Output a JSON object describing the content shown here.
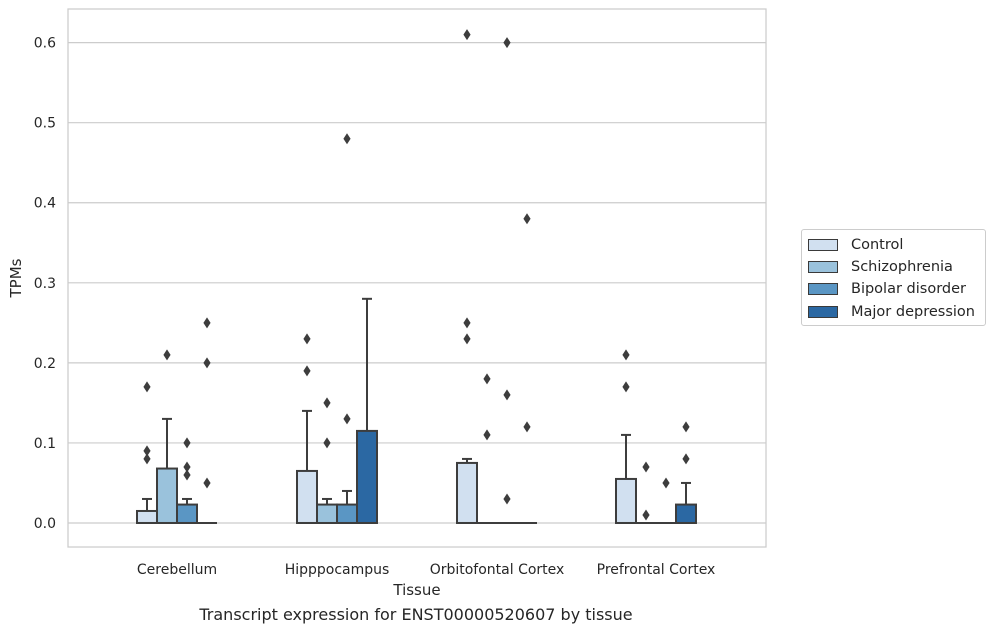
{
  "chart_data": {
    "type": "box",
    "xlabel": "Tissue",
    "ylabel": "TPMs",
    "ylim": [
      -0.03,
      0.642
    ],
    "yticks": [
      0.0,
      0.1,
      0.2,
      0.3,
      0.4,
      0.5,
      0.6
    ],
    "ytick_labels": [
      "0.0",
      "0.1",
      "0.2",
      "0.3",
      "0.4",
      "0.5",
      "0.6"
    ],
    "grid": "horizontal",
    "legend_position": "right",
    "caption": "Transcript expression for ENST00000520607 by tissue",
    "categories": [
      "Cerebellum",
      "Hipppocampus",
      "Orbitofontal Cortex",
      "Prefrontal Cortex"
    ],
    "series": [
      {
        "name": "Control",
        "color": "#d1e0f0",
        "boxes": [
          {
            "q1": 0.0,
            "median": 0.0,
            "q3": 0.015,
            "whisker_low": 0.0,
            "whisker_high": 0.03,
            "outliers": [
              0.08,
              0.09,
              0.17
            ]
          },
          {
            "q1": 0.0,
            "median": 0.0,
            "q3": 0.065,
            "whisker_low": 0.0,
            "whisker_high": 0.14,
            "outliers": [
              0.19,
              0.23
            ]
          },
          {
            "q1": 0.0,
            "median": 0.0,
            "q3": 0.075,
            "whisker_low": 0.0,
            "whisker_high": 0.08,
            "outliers": [
              0.23,
              0.25,
              0.61
            ]
          },
          {
            "q1": 0.0,
            "median": 0.0,
            "q3": 0.055,
            "whisker_low": 0.0,
            "whisker_high": 0.11,
            "outliers": [
              0.17,
              0.21
            ]
          }
        ]
      },
      {
        "name": "Schizophrenia",
        "color": "#9ac2dc",
        "boxes": [
          {
            "q1": 0.0,
            "median": 0.0,
            "q3": 0.068,
            "whisker_low": 0.0,
            "whisker_high": 0.13,
            "outliers": [
              0.21
            ]
          },
          {
            "q1": 0.0,
            "median": 0.0,
            "q3": 0.023,
            "whisker_low": 0.0,
            "whisker_high": 0.03,
            "outliers": [
              0.1,
              0.15
            ]
          },
          {
            "q1": 0.0,
            "median": 0.0,
            "q3": 0.0,
            "whisker_low": 0.0,
            "whisker_high": 0.0,
            "outliers": [
              0.11,
              0.18
            ]
          },
          {
            "q1": 0.0,
            "median": 0.0,
            "q3": 0.0,
            "whisker_low": 0.0,
            "whisker_high": 0.0,
            "outliers": [
              0.01,
              0.07
            ]
          }
        ]
      },
      {
        "name": "Bipolar disorder",
        "color": "#5a96c4",
        "boxes": [
          {
            "q1": 0.0,
            "median": 0.0,
            "q3": 0.023,
            "whisker_low": 0.0,
            "whisker_high": 0.03,
            "outliers": [
              0.06,
              0.07,
              0.1
            ]
          },
          {
            "q1": 0.0,
            "median": 0.0,
            "q3": 0.023,
            "whisker_low": 0.0,
            "whisker_high": 0.04,
            "outliers": [
              0.13,
              0.48
            ]
          },
          {
            "q1": 0.0,
            "median": 0.0,
            "q3": 0.0,
            "whisker_low": 0.0,
            "whisker_high": 0.0,
            "outliers": [
              0.03,
              0.16,
              0.6
            ]
          },
          {
            "q1": 0.0,
            "median": 0.0,
            "q3": 0.0,
            "whisker_low": 0.0,
            "whisker_high": 0.0,
            "outliers": [
              0.05
            ]
          }
        ]
      },
      {
        "name": "Major depression",
        "color": "#2b68a3",
        "boxes": [
          {
            "q1": 0.0,
            "median": 0.0,
            "q3": 0.0,
            "whisker_low": 0.0,
            "whisker_high": 0.0,
            "outliers": [
              0.05,
              0.2,
              0.25
            ]
          },
          {
            "q1": 0.0,
            "median": 0.0,
            "q3": 0.115,
            "whisker_low": 0.0,
            "whisker_high": 0.28,
            "outliers": []
          },
          {
            "q1": 0.0,
            "median": 0.0,
            "q3": 0.0,
            "whisker_low": 0.0,
            "whisker_high": 0.0,
            "outliers": [
              0.12,
              0.38
            ]
          },
          {
            "q1": 0.0,
            "median": 0.0,
            "q3": 0.023,
            "whisker_low": 0.0,
            "whisker_high": 0.05,
            "outliers": [
              0.08,
              0.12
            ]
          }
        ]
      }
    ]
  }
}
